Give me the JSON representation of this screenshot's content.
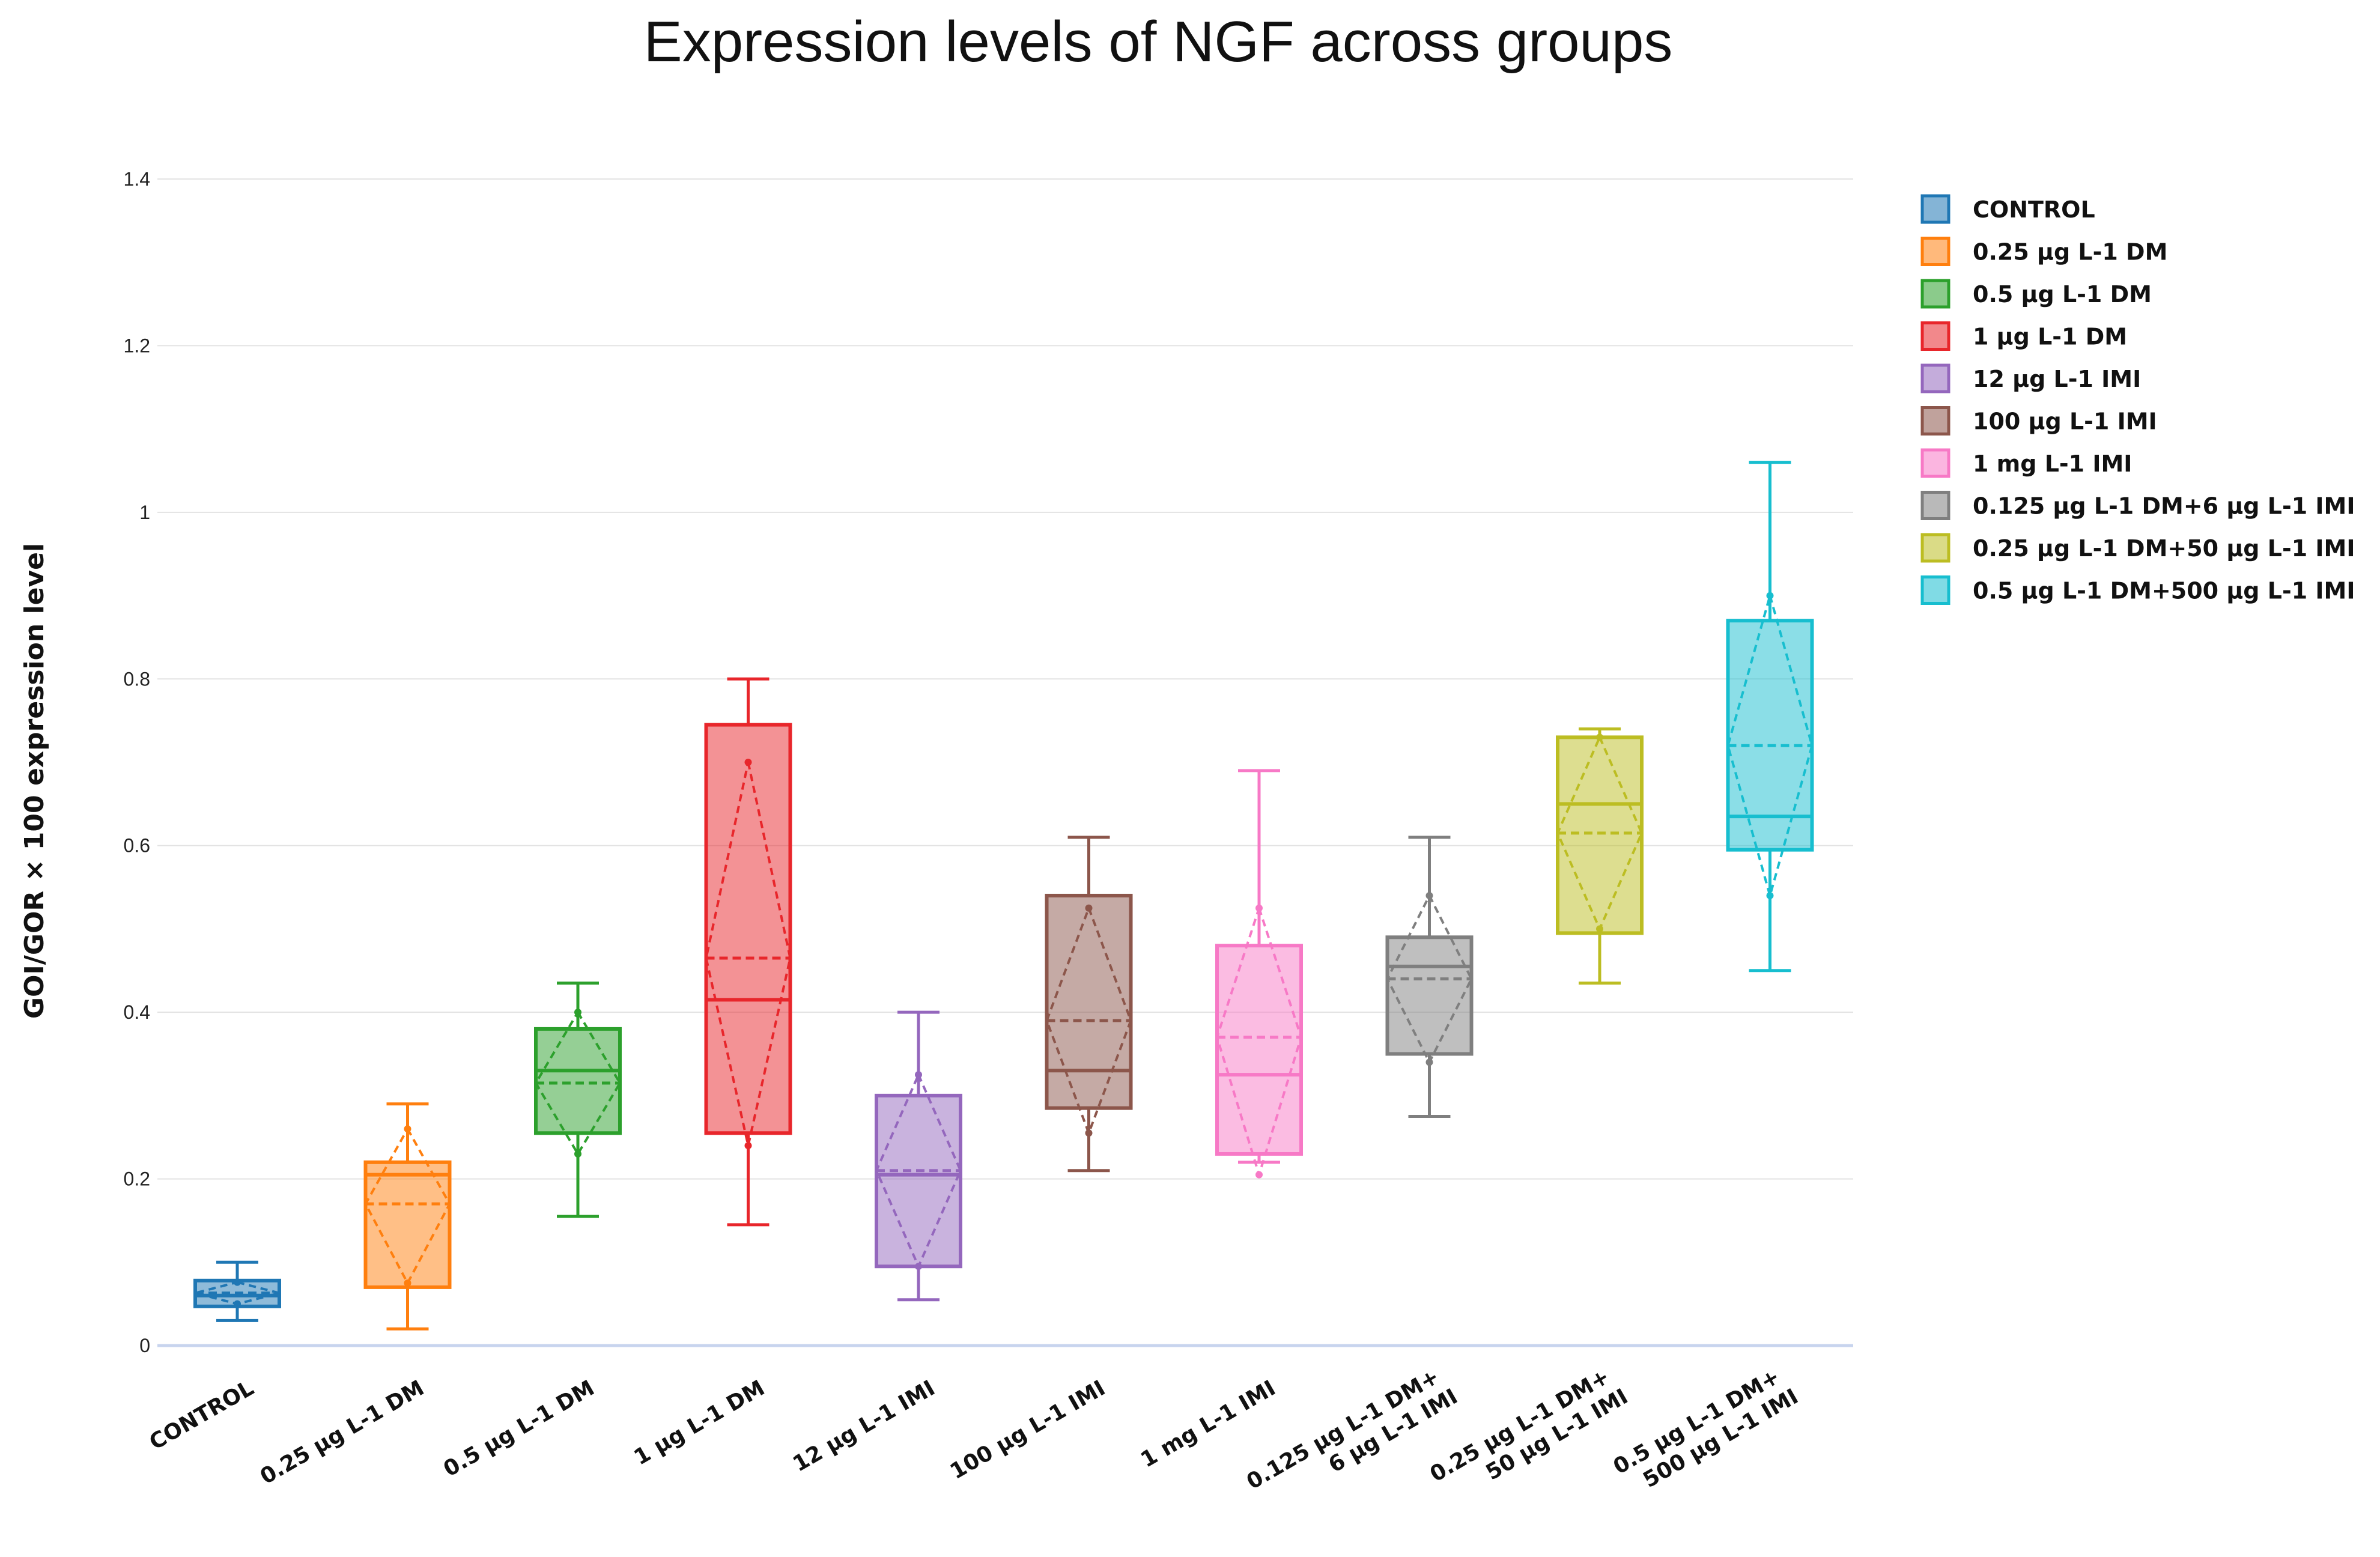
{
  "chart_data": {
    "type": "box",
    "title": "Expression levels of NGF across groups",
    "ylabel": "GOI/GOR × 100 expression level",
    "xlabel": "",
    "ylim": [
      0,
      1.4
    ],
    "yticks": [
      0,
      0.2,
      0.4,
      0.6,
      0.8,
      1,
      1.2,
      1.4
    ],
    "ytick_labels": [
      "0",
      "0.2",
      "0.4",
      "0.6",
      "0.8",
      "1",
      "1.2",
      "1.4"
    ],
    "grid": true,
    "legend_position": "top-right",
    "series": [
      {
        "name": "CONTROL",
        "category_lines": [
          "CONTROL"
        ],
        "color": "#1f77b4",
        "min": 0.03,
        "q1": 0.047,
        "median": 0.06,
        "q3": 0.078,
        "max": 0.1,
        "mean": 0.063,
        "mean_minus_sd": 0.05,
        "mean_plus_sd": 0.076
      },
      {
        "name": "0.25 μg L-1 DM",
        "category_lines": [
          "0.25 μg L-1 DM"
        ],
        "color": "#ff7f0e",
        "min": 0.02,
        "q1": 0.07,
        "median": 0.205,
        "q3": 0.22,
        "max": 0.29,
        "mean": 0.17,
        "mean_minus_sd": 0.075,
        "mean_plus_sd": 0.26
      },
      {
        "name": "0.5 μg L-1 DM",
        "category_lines": [
          "0.5 μg L-1 DM"
        ],
        "color": "#2ca02c",
        "min": 0.155,
        "q1": 0.255,
        "median": 0.33,
        "q3": 0.38,
        "max": 0.435,
        "mean": 0.315,
        "mean_minus_sd": 0.23,
        "mean_plus_sd": 0.4
      },
      {
        "name": "1 μg L-1 DM",
        "category_lines": [
          "1 μg L-1 DM"
        ],
        "color": "#e8262b",
        "min": 0.145,
        "q1": 0.255,
        "median": 0.415,
        "q3": 0.745,
        "max": 0.8,
        "mean": 0.465,
        "mean_minus_sd": 0.24,
        "mean_plus_sd": 0.7
      },
      {
        "name": "12 μg L-1 IMI",
        "category_lines": [
          "12 μg L-1 IMI"
        ],
        "color": "#9467bd",
        "min": 0.055,
        "q1": 0.095,
        "median": 0.205,
        "q3": 0.3,
        "max": 0.4,
        "mean": 0.21,
        "mean_minus_sd": 0.095,
        "mean_plus_sd": 0.325
      },
      {
        "name": "100 μg L-1 IMI",
        "category_lines": [
          "100 μg L-1 IMI"
        ],
        "color": "#8c564b",
        "min": 0.21,
        "q1": 0.285,
        "median": 0.33,
        "q3": 0.54,
        "max": 0.61,
        "mean": 0.39,
        "mean_minus_sd": 0.255,
        "mean_plus_sd": 0.525
      },
      {
        "name": "1 mg L-1 IMI",
        "category_lines": [
          "1 mg L-1 IMI"
        ],
        "color": "#f779c6",
        "min": 0.22,
        "q1": 0.23,
        "median": 0.325,
        "q3": 0.48,
        "max": 0.69,
        "mean": 0.37,
        "mean_minus_sd": 0.205,
        "mean_plus_sd": 0.525
      },
      {
        "name": "0.125 μg L-1 DM+6 μg L-1 IMI",
        "category_lines": [
          "0.125 μg L-1 DM+",
          "6 μg L-1 IMI"
        ],
        "color": "#7f7f7f",
        "min": 0.275,
        "q1": 0.35,
        "median": 0.455,
        "q3": 0.49,
        "max": 0.61,
        "mean": 0.44,
        "mean_minus_sd": 0.34,
        "mean_plus_sd": 0.54
      },
      {
        "name": "0.25 μg L-1 DM+50 μg L-1 IMI",
        "category_lines": [
          "0.25 μg L-1 DM+",
          "50 μg L-1 IMI"
        ],
        "color": "#bcbd22",
        "min": 0.435,
        "q1": 0.495,
        "median": 0.65,
        "q3": 0.73,
        "max": 0.74,
        "mean": 0.615,
        "mean_minus_sd": 0.5,
        "mean_plus_sd": 0.73
      },
      {
        "name": "0.5 μg L-1 DM+500 μg L-1 IMI",
        "category_lines": [
          "0.5 μg L-1 DM+",
          "500 μg L-1 IMI"
        ],
        "color": "#17becf",
        "min": 0.45,
        "q1": 0.595,
        "median": 0.635,
        "q3": 0.87,
        "max": 1.06,
        "mean": 0.72,
        "mean_minus_sd": 0.54,
        "mean_plus_sd": 0.9
      }
    ]
  }
}
